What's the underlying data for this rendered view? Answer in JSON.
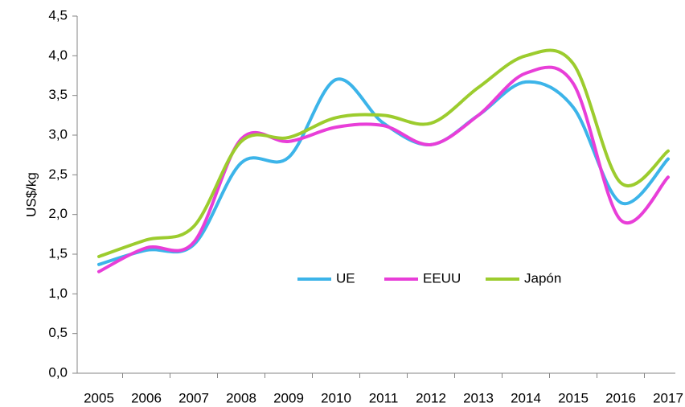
{
  "chart_data": {
    "type": "line",
    "y_label": "US$/kg",
    "categories": [
      "2005",
      "2006",
      "2007",
      "2008",
      "2009",
      "2010",
      "2011",
      "2012",
      "2013",
      "2014",
      "2015",
      "2016",
      "2017"
    ],
    "series": [
      {
        "name": "UE",
        "color": "#3cb4e9",
        "values": [
          1.37,
          1.55,
          1.62,
          2.65,
          2.72,
          3.7,
          3.15,
          2.88,
          3.25,
          3.67,
          3.35,
          2.15,
          2.7
        ]
      },
      {
        "name": "EEUU",
        "color": "#e83ed8",
        "values": [
          1.28,
          1.58,
          1.65,
          2.95,
          2.92,
          3.1,
          3.12,
          2.88,
          3.25,
          3.78,
          3.65,
          1.93,
          2.47
        ]
      },
      {
        "name": "Japón",
        "color": "#9ccc2e",
        "values": [
          1.47,
          1.68,
          1.85,
          2.92,
          2.97,
          3.22,
          3.25,
          3.15,
          3.6,
          4.0,
          3.9,
          2.4,
          2.8
        ]
      }
    ],
    "ylim": [
      0,
      4.5
    ],
    "yticks": [
      {
        "value": 0,
        "label": "0,0"
      },
      {
        "value": 0.5,
        "label": "0,5"
      },
      {
        "value": 1,
        "label": "1,0"
      },
      {
        "value": 1.5,
        "label": "1,5"
      },
      {
        "value": 2,
        "label": "2,0"
      },
      {
        "value": 2.5,
        "label": "2,5"
      },
      {
        "value": 3,
        "label": "3,0"
      },
      {
        "value": 3.5,
        "label": "3,5"
      },
      {
        "value": 4,
        "label": "4,0"
      },
      {
        "value": 4.5,
        "label": "4,5"
      }
    ],
    "legend": "center"
  }
}
